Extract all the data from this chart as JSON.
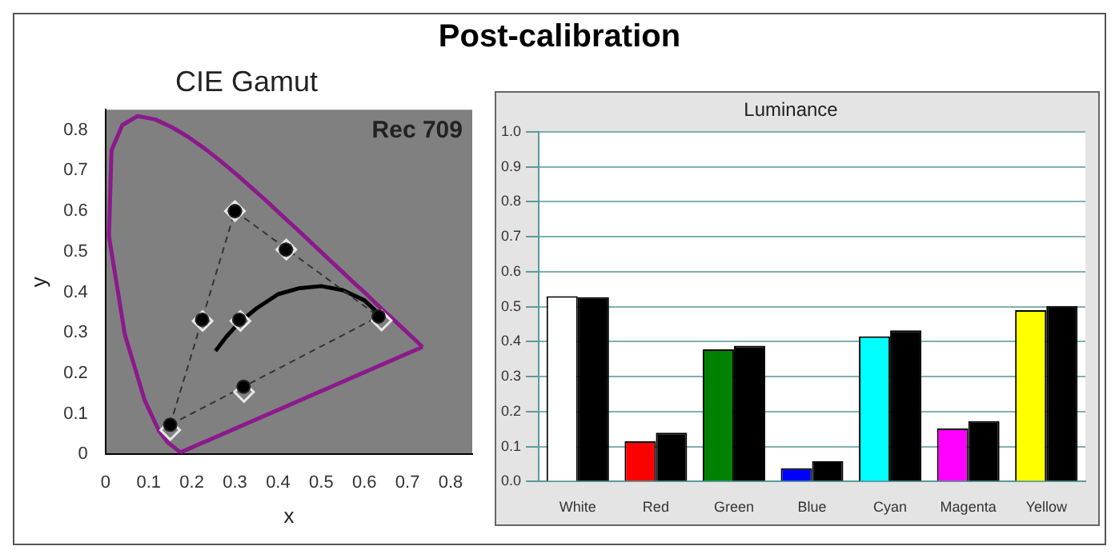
{
  "chart_data": [
    {
      "type": "scatter",
      "title": "CIE Gamut",
      "xlabel": "x",
      "ylabel": "y",
      "annotations": [
        "Post-calibration",
        "Rec 709"
      ],
      "xlim": [
        0,
        0.85
      ],
      "ylim": [
        0,
        0.85
      ],
      "xticks": [
        0,
        0.1,
        0.2,
        0.3,
        0.4,
        0.5,
        0.6,
        0.7,
        0.8
      ],
      "yticks": [
        0,
        0.1,
        0.2,
        0.3,
        0.4,
        0.5,
        0.6,
        0.7,
        0.8
      ],
      "grid": false,
      "legend": false,
      "series": [
        {
          "type": "line",
          "color": "#8b1a8b",
          "marker": "none",
          "line_style": "solid",
          "x": [
            0.174,
            0.144,
            0.124,
            0.091,
            0.045,
            0.008,
            0.014,
            0.039,
            0.074,
            0.115,
            0.155,
            0.193,
            0.23,
            0.266,
            0.302,
            0.337,
            0.373,
            0.408,
            0.444,
            0.479,
            0.512,
            0.545,
            0.575,
            0.603,
            0.627,
            0.648,
            0.666,
            0.68,
            0.692,
            0.735
          ],
          "values": [
            0.005,
            0.03,
            0.058,
            0.133,
            0.295,
            0.538,
            0.75,
            0.812,
            0.834,
            0.826,
            0.806,
            0.782,
            0.754,
            0.724,
            0.692,
            0.659,
            0.625,
            0.59,
            0.555,
            0.52,
            0.487,
            0.454,
            0.424,
            0.397,
            0.372,
            0.351,
            0.334,
            0.32,
            0.308,
            0.265
          ]
        },
        {
          "type": "line",
          "color": "#8b1a8b",
          "marker": "none",
          "line_style": "solid",
          "x": [
            0.174,
            0.735
          ],
          "values": [
            0.005,
            0.265
          ]
        },
        {
          "type": "line",
          "color": "#000000",
          "marker": "none",
          "line_style": "solid",
          "x": [
            0.255,
            0.28,
            0.31,
            0.35,
            0.4,
            0.45,
            0.5,
            0.55,
            0.6,
            0.64
          ],
          "values": [
            0.255,
            0.29,
            0.325,
            0.36,
            0.395,
            0.41,
            0.415,
            0.405,
            0.38,
            0.34
          ]
        },
        {
          "type": "line",
          "color": "#333333",
          "marker": "none",
          "line_style": "dashed",
          "x": [
            0.15,
            0.3,
            0.633
          ],
          "values": [
            0.073,
            0.6,
            0.34
          ]
        },
        {
          "type": "line",
          "color": "#333333",
          "marker": "none",
          "line_style": "dashed",
          "x": [
            0.15,
            0.633
          ],
          "values": [
            0.073,
            0.34
          ]
        },
        {
          "type": "scatter",
          "color": "#e8e8e8",
          "marker": "diamond",
          "x": [
            0.64,
            0.3,
            0.15,
            0.3127,
            0.225,
            0.419,
            0.321
          ],
          "values": [
            0.33,
            0.6,
            0.06,
            0.329,
            0.329,
            0.505,
            0.154
          ]
        },
        {
          "type": "scatter",
          "color": "#000000",
          "marker": "circle",
          "x": [
            0.633,
            0.3,
            0.15,
            0.31,
            0.224,
            0.418,
            0.32
          ],
          "values": [
            0.34,
            0.6,
            0.073,
            0.332,
            0.332,
            0.505,
            0.167
          ]
        }
      ]
    },
    {
      "type": "bar",
      "title": "Luminance",
      "categories": [
        "White",
        "Red",
        "Green",
        "Blue",
        "Cyan",
        "Magenta",
        "Yellow"
      ],
      "ylim": [
        0,
        1
      ],
      "yticks": [
        {
          "value": 0,
          "label": "0.0"
        },
        0.1,
        0.2,
        0.3,
        0.4,
        0.5,
        0.6,
        0.7,
        0.8,
        0.9,
        {
          "value": 1,
          "label": "1.0"
        }
      ],
      "grid": "y",
      "legend": false,
      "series": [
        {
          "colors": [
            "#ffffff",
            "#ff0000",
            "#008000",
            "#0000ff",
            "#00ffff",
            "#ff00ff",
            "#ffff00"
          ],
          "values": [
            0.53,
            0.115,
            0.378,
            0.038,
            0.415,
            0.152,
            0.49
          ]
        },
        {
          "color": "#000000",
          "values": [
            0.527,
            0.14,
            0.388,
            0.058,
            0.432,
            0.173,
            0.502
          ]
        }
      ]
    }
  ]
}
